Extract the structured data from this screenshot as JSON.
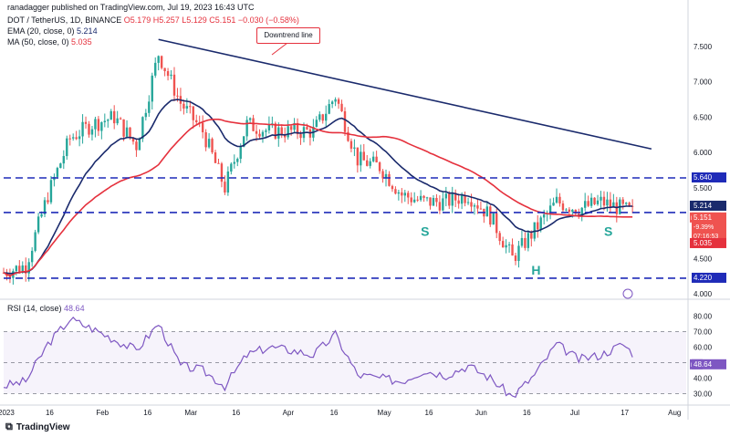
{
  "header": {
    "credit": "ranadagger published on TradingView.com, Jul 19, 2023 16:43 UTC",
    "symbol_line": "DOT / TetherUS, 1D, BINANCE",
    "ohlc": "O5.179  H5.257  L5.129  C5.151  −0.030 (−0.58%)",
    "ema_label": "EMA (20, close, 0)",
    "ema_value": "5.214",
    "ma_label": "MA (50, close, 0)",
    "ma_value": "5.035",
    "rsi_label": "RSI (14, close)",
    "rsi_value": "48.64"
  },
  "colors": {
    "up": "#26a69a",
    "down": "#ef5350",
    "ema": "#1a2a6c",
    "ma": "#e5313d",
    "level": "#1f2bb8",
    "trend": "#1a2a6c",
    "rsi": "#7e57c2",
    "text": "#131722"
  },
  "footer": {
    "brand": "TradingView"
  },
  "chart_data": {
    "type": "candlestick",
    "x": [
      "2023-01-01",
      "2023-07-19"
    ],
    "x_tick_labels": [
      "2023",
      "16",
      "Feb",
      "16",
      "Mar",
      "16",
      "Apr",
      "16",
      "May",
      "16",
      "Jun",
      "16",
      "Jul",
      "17",
      "Aug"
    ],
    "y_tick_labels": [
      "7.500",
      "7.000",
      "6.500",
      "6.000",
      "5.500",
      "5.000",
      "4.500",
      "4.000"
    ],
    "ylim": [
      4.0,
      7.9
    ],
    "candles_weekly_approx": [
      {
        "date": "2023-01-01",
        "close": 4.3
      },
      {
        "date": "2023-01-08",
        "close": 4.4
      },
      {
        "date": "2023-01-15",
        "close": 5.4
      },
      {
        "date": "2023-01-22",
        "close": 6.2
      },
      {
        "date": "2023-01-29",
        "close": 6.4
      },
      {
        "date": "2023-02-05",
        "close": 6.5
      },
      {
        "date": "2023-02-12",
        "close": 6.1
      },
      {
        "date": "2023-02-19",
        "close": 7.4
      },
      {
        "date": "2023-02-26",
        "close": 6.7
      },
      {
        "date": "2023-03-05",
        "close": 6.3
      },
      {
        "date": "2023-03-12",
        "close": 5.5
      },
      {
        "date": "2023-03-19",
        "close": 6.4
      },
      {
        "date": "2023-03-26",
        "close": 6.3
      },
      {
        "date": "2023-04-02",
        "close": 6.3
      },
      {
        "date": "2023-04-09",
        "close": 6.3
      },
      {
        "date": "2023-04-16",
        "close": 6.8
      },
      {
        "date": "2023-04-23",
        "close": 5.9
      },
      {
        "date": "2023-04-30",
        "close": 5.8
      },
      {
        "date": "2023-05-07",
        "close": 5.4
      },
      {
        "date": "2023-05-14",
        "close": 5.3
      },
      {
        "date": "2023-05-21",
        "close": 5.3
      },
      {
        "date": "2023-05-28",
        "close": 5.4
      },
      {
        "date": "2023-06-04",
        "close": 5.1
      },
      {
        "date": "2023-06-11",
        "close": 4.5
      },
      {
        "date": "2023-06-18",
        "close": 4.9
      },
      {
        "date": "2023-06-25",
        "close": 5.3
      },
      {
        "date": "2023-07-02",
        "close": 5.2
      },
      {
        "date": "2023-07-09",
        "close": 5.3
      },
      {
        "date": "2023-07-16",
        "close": 5.2
      },
      {
        "date": "2023-07-19",
        "close": 5.151
      }
    ],
    "levels": [
      5.64,
      5.15,
      4.22
    ],
    "level_labels": [
      "5.640",
      "5.150",
      "4.220"
    ],
    "trendline": {
      "from": {
        "date": "2023-02-19",
        "price": 7.6
      },
      "to": {
        "date": "2023-07-25",
        "price": 6.05
      }
    },
    "price_tags": [
      {
        "label": "5.640",
        "value": 5.64
      },
      {
        "label": "EMA",
        "value": 5.214,
        "text": "5.214"
      },
      {
        "label": "DOTUSDT",
        "value": 5.151,
        "text": "5.151"
      },
      {
        "label": "",
        "text": "-9.39%"
      },
      {
        "label": "",
        "text": "07:16:53"
      },
      {
        "label": "MA",
        "value": 5.035,
        "text": "5.035"
      },
      {
        "label": "4.220",
        "value": 4.22
      }
    ],
    "annotations": [
      "Downtrend line",
      "S",
      "H",
      "S"
    ],
    "rsi": {
      "ylim": [
        25,
        85
      ],
      "y_tick_labels": [
        "80.00",
        "70.00",
        "60.00",
        "50.00",
        "40.00",
        "30.00"
      ],
      "bands": [
        70,
        30
      ],
      "current": 48.64,
      "values_weekly_approx": [
        35,
        38,
        62,
        78,
        72,
        65,
        58,
        75,
        48,
        45,
        35,
        55,
        60,
        58,
        55,
        68,
        42,
        40,
        38,
        45,
        42,
        48,
        40,
        28,
        42,
        62,
        52,
        55,
        62,
        48.64
      ]
    }
  }
}
